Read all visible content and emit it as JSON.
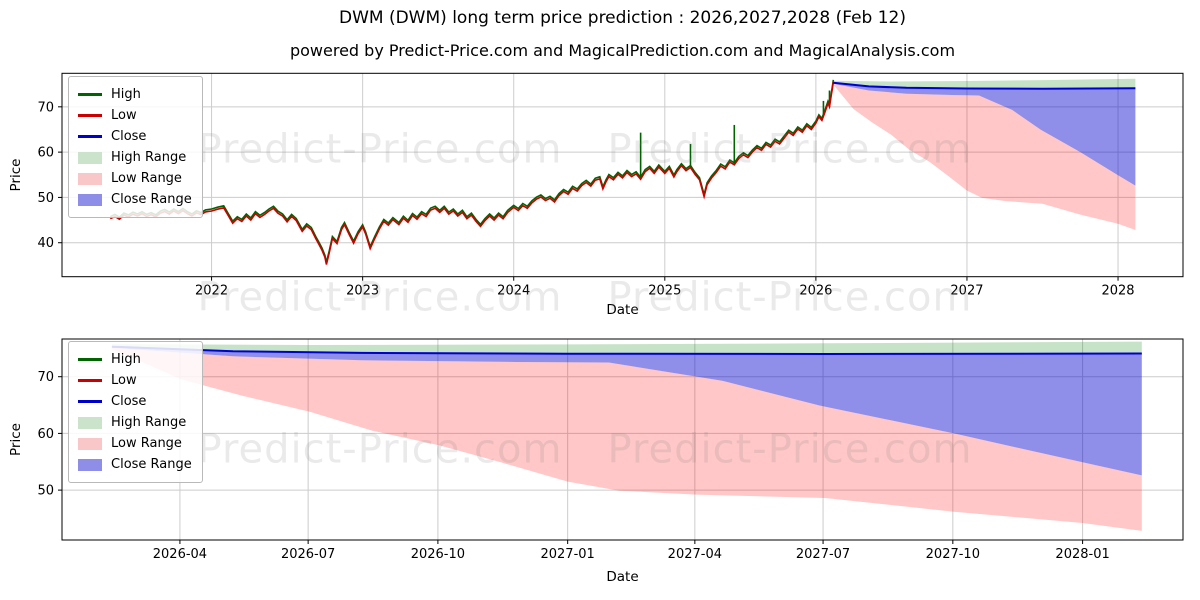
{
  "figure": {
    "title": "DWM (DWM) long term price prediction : 2026,2027,2028 (Feb 12)",
    "subtitle": "powered by Predict-Price.com and MagicalPrediction.com and MagicalAnalysis.com",
    "watermark_text": "Predict-Price.com"
  },
  "colors": {
    "high_line": "#006400",
    "low_line": "#cc0000",
    "close_line": "#0000cd",
    "high_range_fill": "rgba(0,128,0,0.22)",
    "low_range_fill": "rgba(255,0,0,0.22)",
    "close_range_fill": "rgba(0,0,205,0.44)",
    "high_range_swatch": "#cbe3cb",
    "low_range_swatch": "#f9c7c7",
    "close_range_swatch": "#8e8ee9",
    "grid": "#cccccc",
    "spine": "#000000"
  },
  "legend": {
    "items": [
      {
        "label": "High",
        "type": "line",
        "color_key": "high_line"
      },
      {
        "label": "Low",
        "type": "line",
        "color_key": "low_line"
      },
      {
        "label": "Close",
        "type": "line",
        "color_key": "close_line"
      },
      {
        "label": "High Range",
        "type": "patch",
        "color_key": "high_range_swatch"
      },
      {
        "label": "Low Range",
        "type": "patch",
        "color_key": "low_range_swatch"
      },
      {
        "label": "Close Range",
        "type": "patch",
        "color_key": "close_range_swatch"
      }
    ]
  },
  "chart_data": {
    "type": "line",
    "title": "DWM (DWM) long term price prediction : 2026,2027,2028 (Feb 12)",
    "top": {
      "xlabel": "Date",
      "ylabel": "Price",
      "xlim": [
        2021.01,
        2028.43
      ],
      "ylim": [
        32.5,
        77.4
      ],
      "x_ticks": [
        {
          "v": 2022,
          "label": "2022"
        },
        {
          "v": 2023,
          "label": "2023"
        },
        {
          "v": 2024,
          "label": "2024"
        },
        {
          "v": 2025,
          "label": "2025"
        },
        {
          "v": 2026,
          "label": "2026"
        },
        {
          "v": 2027,
          "label": "2027"
        },
        {
          "v": 2028,
          "label": "2028"
        }
      ],
      "y_ticks": [
        40,
        50,
        60,
        70
      ],
      "history_low": [
        [
          2021.33,
          45.3
        ],
        [
          2021.36,
          45.8
        ],
        [
          2021.39,
          45.2
        ],
        [
          2021.42,
          46.1
        ],
        [
          2021.45,
          45.7
        ],
        [
          2021.48,
          46.3
        ],
        [
          2021.51,
          45.9
        ],
        [
          2021.54,
          46.4
        ],
        [
          2021.57,
          45.8
        ],
        [
          2021.6,
          46.2
        ],
        [
          2021.63,
          45.7
        ],
        [
          2021.66,
          46.5
        ],
        [
          2021.69,
          46.9
        ],
        [
          2021.72,
          46.3
        ],
        [
          2021.75,
          47.0
        ],
        [
          2021.78,
          46.4
        ],
        [
          2021.81,
          47.1
        ],
        [
          2021.84,
          46.4
        ],
        [
          2021.87,
          45.9
        ],
        [
          2021.9,
          46.6
        ],
        [
          2021.93,
          46.2
        ],
        [
          2021.96,
          46.8
        ],
        [
          2022.0,
          47.0
        ],
        [
          2022.04,
          47.4
        ],
        [
          2022.08,
          47.7
        ],
        [
          2022.11,
          46.0
        ],
        [
          2022.14,
          44.3
        ],
        [
          2022.17,
          45.3
        ],
        [
          2022.2,
          44.7
        ],
        [
          2022.23,
          45.9
        ],
        [
          2022.26,
          45.0
        ],
        [
          2022.29,
          46.4
        ],
        [
          2022.32,
          45.6
        ],
        [
          2022.35,
          46.2
        ],
        [
          2022.38,
          47.0
        ],
        [
          2022.41,
          47.6
        ],
        [
          2022.44,
          46.5
        ],
        [
          2022.47,
          45.9
        ],
        [
          2022.5,
          44.6
        ],
        [
          2022.53,
          45.8
        ],
        [
          2022.56,
          44.9
        ],
        [
          2022.58,
          43.7
        ],
        [
          2022.6,
          42.5
        ],
        [
          2022.63,
          43.7
        ],
        [
          2022.66,
          42.9
        ],
        [
          2022.69,
          40.9
        ],
        [
          2022.71,
          39.7
        ],
        [
          2022.73,
          38.4
        ],
        [
          2022.75,
          36.8
        ],
        [
          2022.76,
          35.2
        ],
        [
          2022.78,
          37.9
        ],
        [
          2022.8,
          40.9
        ],
        [
          2022.83,
          39.8
        ],
        [
          2022.86,
          42.9
        ],
        [
          2022.88,
          44.0
        ],
        [
          2022.91,
          41.9
        ],
        [
          2022.94,
          39.9
        ],
        [
          2022.97,
          42.0
        ],
        [
          2023.0,
          43.5
        ],
        [
          2023.02,
          41.9
        ],
        [
          2023.05,
          38.7
        ],
        [
          2023.08,
          40.9
        ],
        [
          2023.11,
          43.0
        ],
        [
          2023.14,
          44.7
        ],
        [
          2023.17,
          43.9
        ],
        [
          2023.2,
          45.1
        ],
        [
          2023.24,
          44.0
        ],
        [
          2023.27,
          45.4
        ],
        [
          2023.3,
          44.5
        ],
        [
          2023.33,
          46.0
        ],
        [
          2023.36,
          45.2
        ],
        [
          2023.39,
          46.4
        ],
        [
          2023.42,
          45.8
        ],
        [
          2023.45,
          47.2
        ],
        [
          2023.48,
          47.6
        ],
        [
          2023.51,
          46.7
        ],
        [
          2023.54,
          47.6
        ],
        [
          2023.57,
          46.3
        ],
        [
          2023.6,
          47.0
        ],
        [
          2023.63,
          45.9
        ],
        [
          2023.66,
          46.7
        ],
        [
          2023.69,
          45.3
        ],
        [
          2023.72,
          46.1
        ],
        [
          2023.75,
          44.7
        ],
        [
          2023.78,
          43.6
        ],
        [
          2023.81,
          44.9
        ],
        [
          2023.84,
          45.9
        ],
        [
          2023.87,
          45.0
        ],
        [
          2023.9,
          46.1
        ],
        [
          2023.93,
          45.3
        ],
        [
          2023.96,
          46.7
        ],
        [
          2024.0,
          47.8
        ],
        [
          2024.03,
          47.1
        ],
        [
          2024.06,
          48.2
        ],
        [
          2024.09,
          47.6
        ],
        [
          2024.12,
          48.8
        ],
        [
          2024.15,
          49.6
        ],
        [
          2024.18,
          50.1
        ],
        [
          2024.21,
          49.3
        ],
        [
          2024.24,
          49.8
        ],
        [
          2024.27,
          49.0
        ],
        [
          2024.3,
          50.4
        ],
        [
          2024.33,
          51.3
        ],
        [
          2024.36,
          50.7
        ],
        [
          2024.39,
          52.0
        ],
        [
          2024.42,
          51.4
        ],
        [
          2024.45,
          52.6
        ],
        [
          2024.48,
          53.3
        ],
        [
          2024.51,
          52.5
        ],
        [
          2024.54,
          53.8
        ],
        [
          2024.57,
          54.1
        ],
        [
          2024.59,
          51.9
        ],
        [
          2024.61,
          53.4
        ],
        [
          2024.63,
          54.6
        ],
        [
          2024.66,
          53.9
        ],
        [
          2024.69,
          55.1
        ],
        [
          2024.72,
          54.3
        ],
        [
          2024.75,
          55.5
        ],
        [
          2024.78,
          54.6
        ],
        [
          2024.81,
          55.2
        ],
        [
          2024.84,
          54.0
        ],
        [
          2024.87,
          55.7
        ],
        [
          2024.9,
          56.4
        ],
        [
          2024.93,
          55.3
        ],
        [
          2024.96,
          56.7
        ],
        [
          2025.0,
          55.3
        ],
        [
          2025.03,
          56.4
        ],
        [
          2025.06,
          54.5
        ],
        [
          2025.08,
          55.7
        ],
        [
          2025.11,
          57.0
        ],
        [
          2025.14,
          55.9
        ],
        [
          2025.17,
          56.6
        ],
        [
          2025.2,
          55.1
        ],
        [
          2025.23,
          53.9
        ],
        [
          2025.26,
          50.2
        ],
        [
          2025.28,
          52.8
        ],
        [
          2025.31,
          54.3
        ],
        [
          2025.34,
          55.5
        ],
        [
          2025.37,
          56.9
        ],
        [
          2025.4,
          56.3
        ],
        [
          2025.43,
          57.8
        ],
        [
          2025.46,
          57.2
        ],
        [
          2025.49,
          58.6
        ],
        [
          2025.52,
          59.4
        ],
        [
          2025.55,
          58.8
        ],
        [
          2025.58,
          60.0
        ],
        [
          2025.61,
          61.0
        ],
        [
          2025.64,
          60.4
        ],
        [
          2025.67,
          61.7
        ],
        [
          2025.7,
          61.1
        ],
        [
          2025.73,
          62.4
        ],
        [
          2025.76,
          61.8
        ],
        [
          2025.79,
          63.1
        ],
        [
          2025.82,
          64.4
        ],
        [
          2025.85,
          63.7
        ],
        [
          2025.88,
          65.1
        ],
        [
          2025.91,
          64.4
        ],
        [
          2025.94,
          65.8
        ],
        [
          2025.97,
          65.0
        ],
        [
          2026.0,
          66.4
        ],
        [
          2026.02,
          67.8
        ],
        [
          2026.04,
          67.0
        ],
        [
          2026.06,
          68.8
        ],
        [
          2026.08,
          70.8
        ],
        [
          2026.09,
          70.0
        ],
        [
          2026.1,
          72.2
        ],
        [
          2026.11,
          74.2
        ],
        [
          2026.115,
          75.5
        ]
      ],
      "history_high_offset": 0.45,
      "history_high_spikes": [
        [
          2024.84,
          64.3
        ],
        [
          2025.17,
          61.8
        ],
        [
          2025.46,
          66.0
        ],
        [
          2026.05,
          71.3
        ],
        [
          2026.09,
          73.6
        ]
      ],
      "prediction": {
        "close": [
          [
            2026.115,
            75.3
          ],
          [
            2026.35,
            74.5
          ],
          [
            2026.6,
            74.2
          ],
          [
            2027.0,
            74.05
          ],
          [
            2027.5,
            74.0
          ],
          [
            2028.115,
            74.1
          ]
        ],
        "high_upper": [
          [
            2026.115,
            75.75
          ],
          [
            2026.5,
            75.6
          ],
          [
            2027.0,
            75.7
          ],
          [
            2027.5,
            75.9
          ],
          [
            2028.115,
            76.2
          ]
        ],
        "high_lower": [
          [
            2026.115,
            75.1
          ],
          [
            2026.6,
            74.0
          ],
          [
            2027.0,
            73.9
          ],
          [
            2028.115,
            73.95
          ]
        ],
        "close_lower": [
          [
            2026.115,
            75.1
          ],
          [
            2026.35,
            73.6
          ],
          [
            2026.6,
            72.9
          ],
          [
            2026.9,
            72.6
          ],
          [
            2027.08,
            72.5
          ],
          [
            2027.3,
            69.3
          ],
          [
            2027.49,
            64.9
          ],
          [
            2027.75,
            60.0
          ],
          [
            2028.0,
            54.9
          ],
          [
            2028.115,
            52.6
          ]
        ],
        "low_lower": [
          [
            2026.115,
            74.9
          ],
          [
            2026.25,
            69.5
          ],
          [
            2026.37,
            66.6
          ],
          [
            2026.5,
            63.8
          ],
          [
            2026.62,
            60.5
          ],
          [
            2026.75,
            57.9
          ],
          [
            2026.87,
            54.9
          ],
          [
            2027.0,
            51.5
          ],
          [
            2027.1,
            49.9
          ],
          [
            2027.25,
            49.2
          ],
          [
            2027.5,
            48.6
          ],
          [
            2027.75,
            46.2
          ],
          [
            2028.0,
            44.2
          ],
          [
            2028.115,
            42.8
          ]
        ]
      }
    },
    "bottom": {
      "xlabel": "Date",
      "ylabel": "Price",
      "xlim": [
        2026.018,
        2028.195
      ],
      "ylim": [
        41.2,
        76.65
      ],
      "x_ticks": [
        {
          "v": 2026.247,
          "label": "2026-04"
        },
        {
          "v": 2026.496,
          "label": "2026-07"
        },
        {
          "v": 2026.748,
          "label": "2026-10"
        },
        {
          "v": 2027.0,
          "label": "2027-01"
        },
        {
          "v": 2027.247,
          "label": "2027-04"
        },
        {
          "v": 2027.496,
          "label": "2027-07"
        },
        {
          "v": 2027.748,
          "label": "2027-10"
        },
        {
          "v": 2028.0,
          "label": "2028-01"
        }
      ],
      "y_ticks": [
        50,
        60,
        70
      ],
      "prediction": {
        "close": [
          [
            2026.115,
            75.3
          ],
          [
            2026.35,
            74.5
          ],
          [
            2026.6,
            74.2
          ],
          [
            2027.0,
            74.05
          ],
          [
            2027.5,
            74.0
          ],
          [
            2028.115,
            74.1
          ]
        ],
        "high_upper": [
          [
            2026.115,
            75.75
          ],
          [
            2026.5,
            75.6
          ],
          [
            2027.0,
            75.7
          ],
          [
            2027.5,
            75.9
          ],
          [
            2028.115,
            76.2
          ]
        ],
        "high_lower": [
          [
            2026.115,
            75.1
          ],
          [
            2026.6,
            74.0
          ],
          [
            2027.0,
            73.9
          ],
          [
            2028.115,
            73.95
          ]
        ],
        "close_lower": [
          [
            2026.115,
            75.1
          ],
          [
            2026.35,
            73.6
          ],
          [
            2026.6,
            72.9
          ],
          [
            2026.9,
            72.6
          ],
          [
            2027.08,
            72.5
          ],
          [
            2027.3,
            69.3
          ],
          [
            2027.49,
            64.9
          ],
          [
            2027.75,
            60.0
          ],
          [
            2028.0,
            54.9
          ],
          [
            2028.115,
            52.6
          ]
        ],
        "low_lower": [
          [
            2026.115,
            74.9
          ],
          [
            2026.25,
            69.5
          ],
          [
            2026.37,
            66.6
          ],
          [
            2026.5,
            63.8
          ],
          [
            2026.62,
            60.5
          ],
          [
            2026.75,
            57.9
          ],
          [
            2026.87,
            54.9
          ],
          [
            2027.0,
            51.5
          ],
          [
            2027.1,
            49.9
          ],
          [
            2027.25,
            49.2
          ],
          [
            2027.5,
            48.6
          ],
          [
            2027.75,
            46.2
          ],
          [
            2028.0,
            44.2
          ],
          [
            2028.115,
            42.8
          ]
        ]
      }
    }
  }
}
